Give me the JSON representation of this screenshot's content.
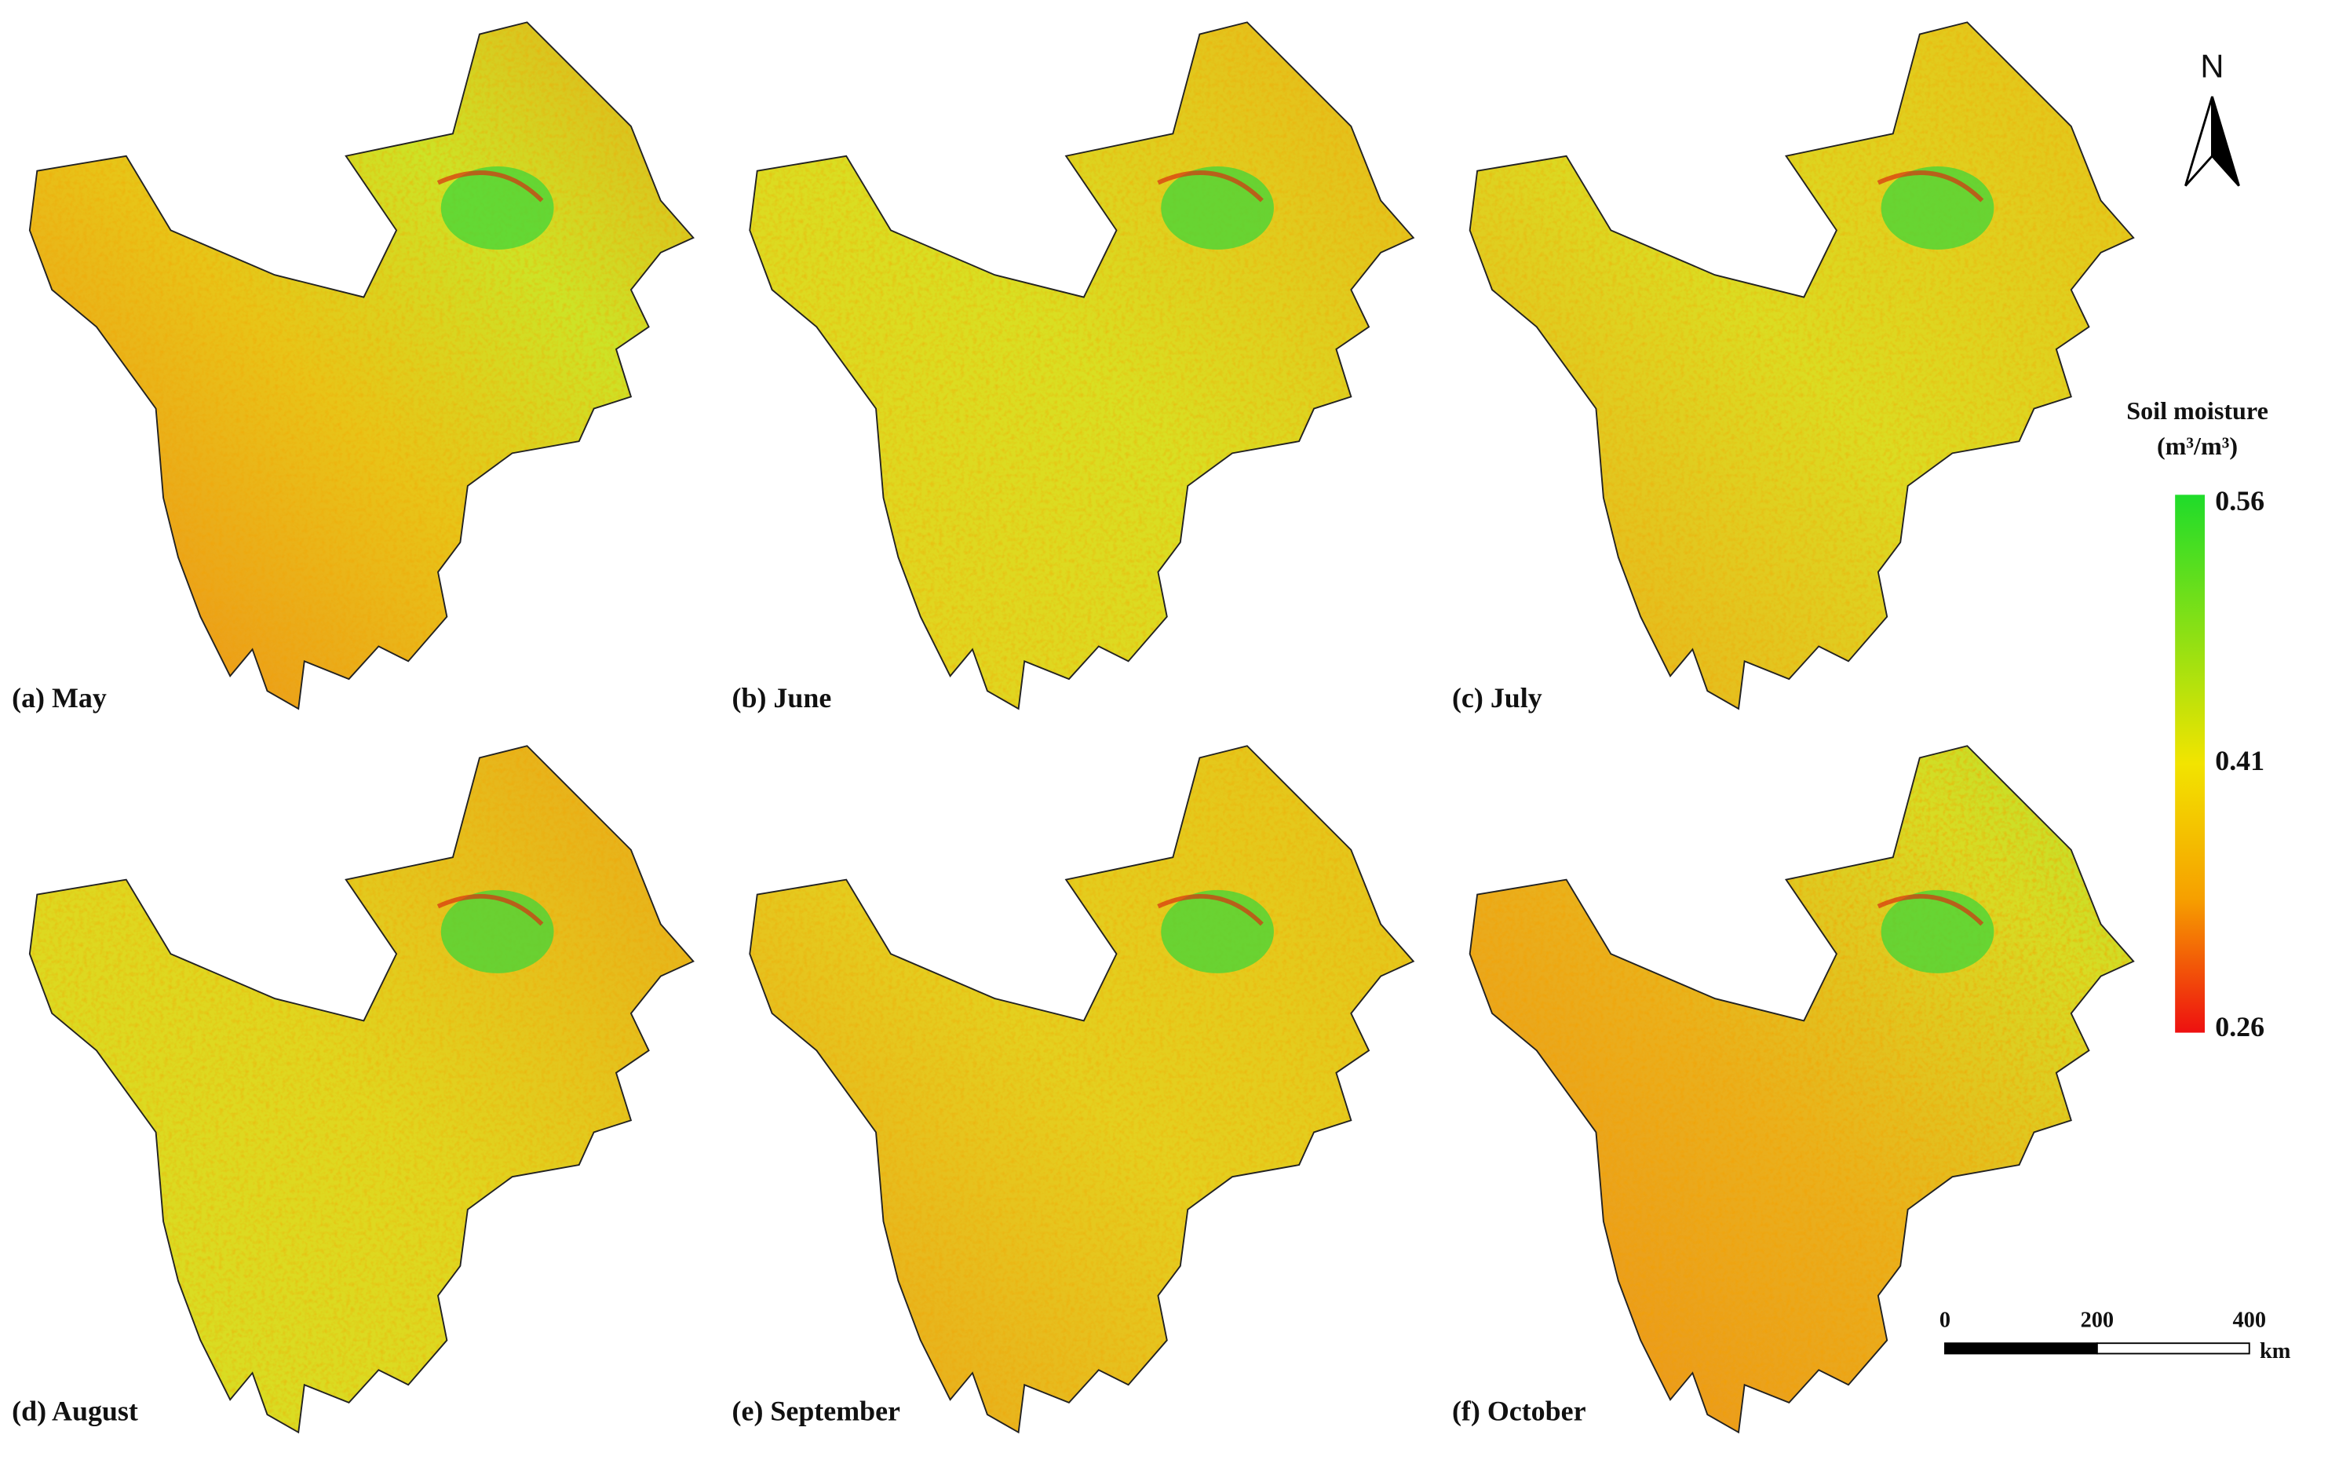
{
  "panels": [
    {
      "label": "(a) May"
    },
    {
      "label": "(b) June"
    },
    {
      "label": "(c) July"
    },
    {
      "label": "(d) August"
    },
    {
      "label": "(e) September"
    },
    {
      "label": "(f) October"
    }
  ],
  "legend": {
    "title": "Soil moisture",
    "unit": "(m³/m³)",
    "ticks": [
      0.56,
      0.41,
      0.26
    ]
  },
  "scale_bar": {
    "ticks": [
      0,
      200,
      400
    ],
    "unit": "km"
  },
  "north": "N"
}
